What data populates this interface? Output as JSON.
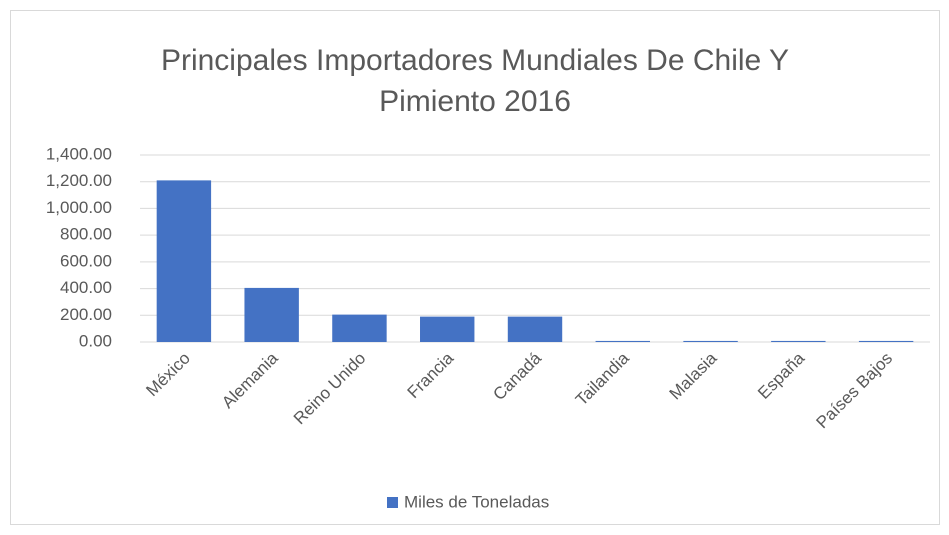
{
  "chart_data": {
    "type": "bar",
    "title": "Principales Importadores Mundiales De Chile Y Pimiento 2016",
    "categories": [
      "México",
      "Alemania",
      "Reino Unido",
      "Francia",
      "Canadá",
      "Tailandia",
      "Malasia",
      "España",
      "Países Bajos"
    ],
    "series": [
      {
        "name": "Miles de Toneladas",
        "color": "#4472c4",
        "values": [
          1210,
          405,
          205,
          190,
          190,
          8,
          8,
          8,
          8
        ]
      }
    ],
    "ylim": [
      0,
      1400
    ],
    "yticks": [
      {
        "value": 0,
        "label": "0.00"
      },
      {
        "value": 200,
        "label": "200.00"
      },
      {
        "value": 400,
        "label": "400.00"
      },
      {
        "value": 600,
        "label": "600.00"
      },
      {
        "value": 800,
        "label": "800.00"
      },
      {
        "value": 1000,
        "label": "1,000.00"
      },
      {
        "value": 1200,
        "label": "1,200.00"
      },
      {
        "value": 1400,
        "label": "1,400.00"
      }
    ],
    "grid": true,
    "legend": "bottom"
  }
}
